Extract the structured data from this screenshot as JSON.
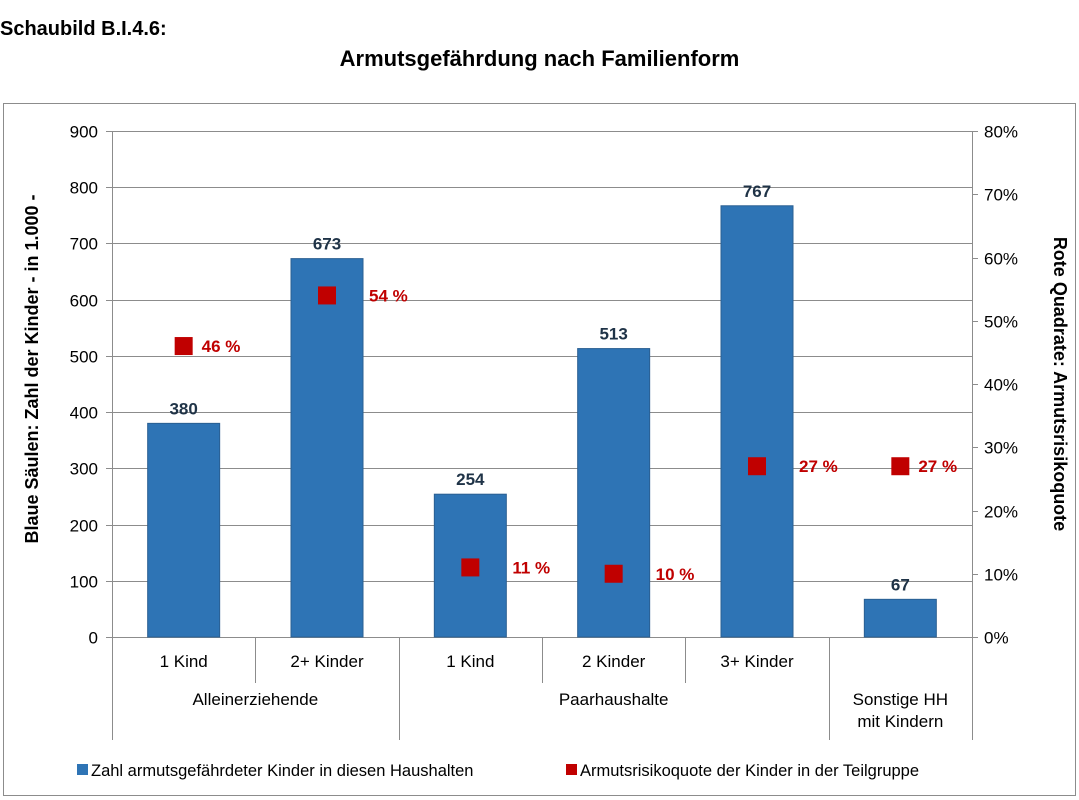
{
  "heading": "Schaubild B.I.4.6:",
  "chart_data": {
    "type": "bar",
    "title": "Armutsgefährdung nach Familienform",
    "ylabel": "Blaue Säulen: Zahl der Kinder - in 1.000 -",
    "y2label": "Rote Quadrate: Armutsrisikoquote",
    "ylim": [
      0,
      900
    ],
    "y2lim": [
      0,
      80
    ],
    "yticks": [
      "0",
      "100",
      "200",
      "300",
      "400",
      "500",
      "600",
      "700",
      "800",
      "900"
    ],
    "y2ticks": [
      "0%",
      "10%",
      "20%",
      "30%",
      "40%",
      "50%",
      "60%",
      "70%",
      "80%"
    ],
    "grid": true,
    "legend_position": "bottom",
    "groups": [
      {
        "label": "Alleinerziehende",
        "lines": [
          "Alleinerziehende"
        ]
      },
      {
        "label": "Paarhaushalte",
        "lines": [
          "Paarhaushalte"
        ]
      },
      {
        "label": "Sonstige HH mit Kindern",
        "lines": [
          "Sonstige HH",
          "mit Kindern"
        ]
      }
    ],
    "categories": [
      "1 Kind",
      "2+ Kinder",
      "1 Kind",
      "2 Kinder",
      "3+ Kinder",
      ""
    ],
    "category_group": [
      0,
      0,
      1,
      1,
      1,
      2
    ],
    "series": [
      {
        "name": "Zahl armutsgefährdeter Kinder in diesen Haushalten",
        "kind": "bar",
        "axis": "left",
        "color": "#2e74b5",
        "values": [
          380,
          673,
          254,
          513,
          767,
          67
        ],
        "labels": [
          "380",
          "673",
          "254",
          "513",
          "767",
          "67"
        ]
      },
      {
        "name": "Armutsrisikoquote der Kinder in der Teilgruppe",
        "kind": "marker",
        "axis": "right",
        "color": "#c00000",
        "values": [
          46,
          54,
          11,
          10,
          27,
          27
        ],
        "labels": [
          "46 %",
          "54 %",
          "11 %",
          "10 %",
          "27 %",
          "27 %"
        ]
      }
    ]
  }
}
